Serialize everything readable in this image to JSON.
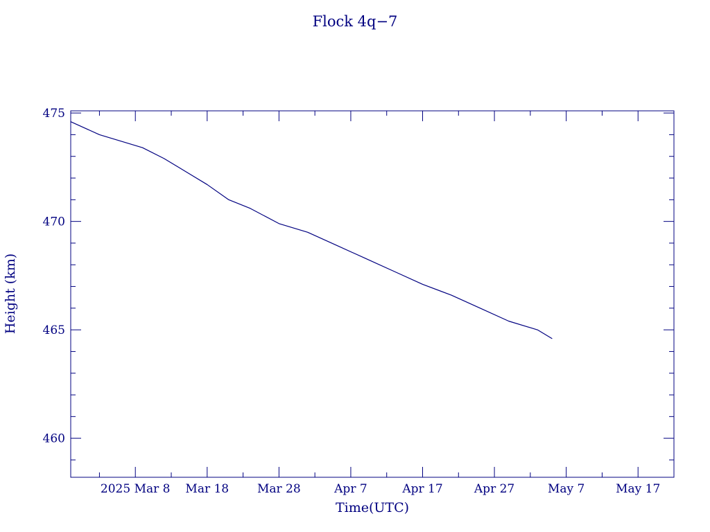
{
  "chart_data": {
    "type": "line",
    "title": "Flock 4q−7",
    "xlabel": "Time(UTC)",
    "ylabel": "Height (km)",
    "x_tick_labels": [
      "2025 Mar  8",
      "Mar 18",
      "Mar 28",
      "Apr  7",
      "Apr 17",
      "Apr 27",
      "May  7",
      "May 17"
    ],
    "y_tick_labels": [
      "460",
      "465",
      "470",
      "475"
    ],
    "x_tick_values": [
      "2025-03-08",
      "2025-03-18",
      "2025-03-28",
      "2025-04-07",
      "2025-04-17",
      "2025-04-27",
      "2025-05-07",
      "2025-05-17"
    ],
    "y_tick_values": [
      460,
      465,
      470,
      475
    ],
    "xlim": [
      "2025-02-27",
      "2025-05-22"
    ],
    "ylim": [
      458.2,
      475.1
    ],
    "grid": false,
    "line_color": "#000080",
    "series": [
      {
        "x": [
          "2025-02-27",
          "2025-03-01",
          "2025-03-03",
          "2025-03-06",
          "2025-03-09",
          "2025-03-12",
          "2025-03-15",
          "2025-03-18",
          "2025-03-21",
          "2025-03-24",
          "2025-03-28",
          "2025-04-01",
          "2025-04-05",
          "2025-04-09",
          "2025-04-13",
          "2025-04-17",
          "2025-04-21",
          "2025-04-25",
          "2025-04-29",
          "2025-05-03",
          "2025-05-05"
        ],
        "y": [
          474.6,
          474.3,
          474.0,
          473.7,
          473.4,
          472.9,
          472.3,
          471.7,
          471.0,
          470.6,
          469.9,
          469.5,
          468.9,
          468.3,
          467.7,
          467.1,
          466.6,
          466.0,
          465.4,
          465.0,
          464.6
        ]
      }
    ]
  }
}
